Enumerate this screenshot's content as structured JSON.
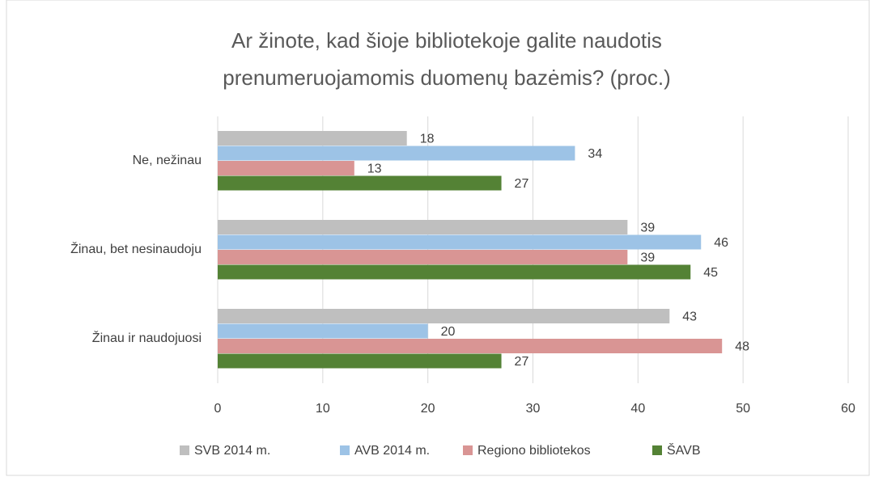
{
  "chart_data": {
    "type": "hbar",
    "title": [
      "Ar žinote, kad šioje bibliotekoje galite naudotis",
      "prenumeruojamomis duomenų bazėmis? (proc.)"
    ],
    "categories": [
      "Ne, nežinau",
      "Žinau, bet nesinaudoju",
      "Žinau ir naudojuosi"
    ],
    "series": [
      {
        "name": "SVB 2014 m.",
        "color": "#bfbfbf",
        "values": [
          18,
          39,
          43
        ]
      },
      {
        "name": "AVB 2014 m.",
        "color": "#9dc3e6",
        "values": [
          34,
          46,
          20
        ]
      },
      {
        "name": "Regiono bibliotekos",
        "color": "#d99594",
        "values": [
          13,
          39,
          48
        ]
      },
      {
        "name": "ŠAVB",
        "color": "#548235",
        "values": [
          27,
          45,
          27
        ]
      }
    ],
    "xlim": [
      0,
      60
    ],
    "xticks": [
      0,
      10,
      20,
      30,
      40,
      50,
      60
    ],
    "grid": true,
    "legend": "bottom"
  }
}
